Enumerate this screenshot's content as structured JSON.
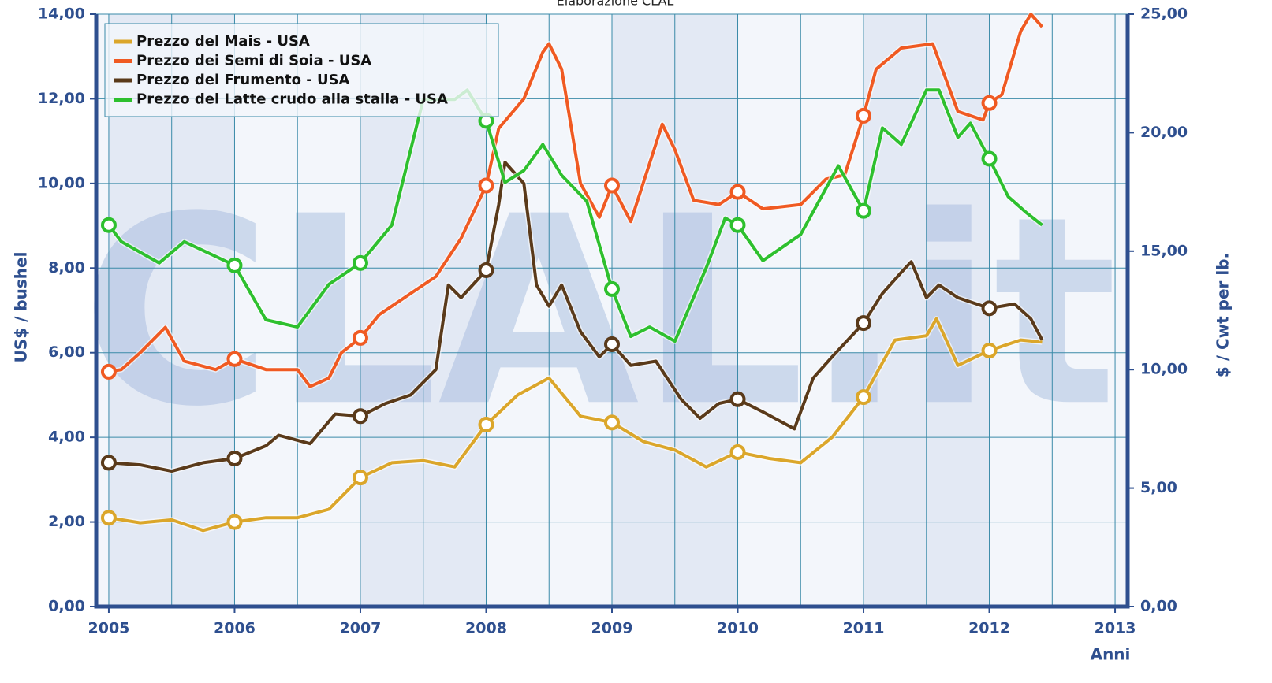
{
  "chart_data": {
    "type": "line",
    "title": "Elaborazione CLAL",
    "watermark": "CLAL.it",
    "xlabel": "Anni",
    "ylabel": "US$ / bushel",
    "y2label": "$ / Cwt per lb.",
    "legend": "upper left",
    "grid": true,
    "xlim": [
      2004.9,
      2013.1
    ],
    "xticks": [
      2005,
      2006,
      2007,
      2008,
      2009,
      2010,
      2011,
      2012,
      2013
    ],
    "ylim": [
      0,
      14
    ],
    "yticks": [
      {
        "value": 0,
        "label": "0,00"
      },
      {
        "value": 2,
        "label": "2,00"
      },
      {
        "value": 4,
        "label": "4,00"
      },
      {
        "value": 6,
        "label": "6,00"
      },
      {
        "value": 8,
        "label": "8,00"
      },
      {
        "value": 10,
        "label": "10,00"
      },
      {
        "value": 12,
        "label": "12,00"
      },
      {
        "value": 14,
        "label": "14,00"
      }
    ],
    "y2lim": [
      0,
      25
    ],
    "y2ticks": [
      {
        "value": 0,
        "label": "0,00"
      },
      {
        "value": 5,
        "label": "5,00"
      },
      {
        "value": 10,
        "label": "10,00"
      },
      {
        "value": 15,
        "label": "15,00"
      },
      {
        "value": 20,
        "label": "20,00"
      },
      {
        "value": 25,
        "label": "25,00"
      }
    ],
    "series": [
      {
        "name": "Prezzo del Mais - USA",
        "color": "#dba62a",
        "x": [
          2005,
          2005.25,
          2005.5,
          2005.75,
          2006,
          2006.25,
          2006.5,
          2006.75,
          2007,
          2007.25,
          2007.5,
          2007.75,
          2008,
          2008.25,
          2008.5,
          2008.75,
          2009,
          2009.25,
          2009.5,
          2009.75,
          2010,
          2010.25,
          2010.5,
          2010.75,
          2011,
          2011.25,
          2011.5,
          2011.58,
          2011.75,
          2012,
          2012.25,
          2012.42
        ],
        "values": [
          2.1,
          1.98,
          2.05,
          1.8,
          2.0,
          2.1,
          2.1,
          2.3,
          3.05,
          3.4,
          3.45,
          3.3,
          4.3,
          5.0,
          5.4,
          4.5,
          4.35,
          3.9,
          3.7,
          3.3,
          3.65,
          3.5,
          3.4,
          4.0,
          4.95,
          6.3,
          6.4,
          6.8,
          5.7,
          6.05,
          6.3,
          6.25
        ]
      },
      {
        "name": "Prezzo dei Semi di Soia - USA",
        "color": "#f05a22",
        "x": [
          2005,
          2005.1,
          2005.25,
          2005.45,
          2005.6,
          2005.85,
          2006,
          2006.25,
          2006.5,
          2006.6,
          2006.75,
          2006.85,
          2007,
          2007.15,
          2007.35,
          2007.6,
          2007.8,
          2008,
          2008.1,
          2008.3,
          2008.45,
          2008.5,
          2008.6,
          2008.75,
          2008.9,
          2009,
          2009.15,
          2009.4,
          2009.5,
          2009.65,
          2009.85,
          2010,
          2010.2,
          2010.5,
          2010.7,
          2010.85,
          2011,
          2011.1,
          2011.3,
          2011.55,
          2011.75,
          2011.95,
          2012,
          2012.1,
          2012.25,
          2012.33,
          2012.42
        ],
        "values": [
          5.55,
          5.6,
          6.0,
          6.6,
          5.8,
          5.6,
          5.85,
          5.6,
          5.6,
          5.2,
          5.4,
          6.0,
          6.35,
          6.9,
          7.3,
          7.8,
          8.7,
          9.95,
          11.3,
          12.0,
          13.1,
          13.3,
          12.7,
          10.0,
          9.2,
          9.95,
          9.1,
          11.4,
          10.8,
          9.6,
          9.5,
          9.8,
          9.4,
          9.5,
          10.1,
          10.2,
          11.6,
          12.7,
          13.2,
          13.3,
          11.7,
          11.5,
          11.9,
          12.1,
          13.6,
          14.0,
          13.7
        ]
      },
      {
        "name": "Prezzo del Frumento - USA",
        "color": "#5a3a1a",
        "x": [
          2005,
          2005.25,
          2005.5,
          2005.75,
          2006,
          2006.25,
          2006.35,
          2006.6,
          2006.8,
          2007,
          2007.2,
          2007.4,
          2007.6,
          2007.7,
          2007.8,
          2008,
          2008.1,
          2008.15,
          2008.3,
          2008.4,
          2008.5,
          2008.6,
          2008.75,
          2008.9,
          2009,
          2009.15,
          2009.35,
          2009.55,
          2009.7,
          2009.85,
          2010,
          2010.2,
          2010.45,
          2010.6,
          2010.75,
          2011,
          2011.15,
          2011.3,
          2011.38,
          2011.5,
          2011.6,
          2011.75,
          2012,
          2012.2,
          2012.33,
          2012.42
        ],
        "values": [
          3.4,
          3.35,
          3.2,
          3.4,
          3.5,
          3.8,
          4.05,
          3.85,
          4.55,
          4.5,
          4.8,
          5.0,
          5.6,
          7.6,
          7.3,
          7.95,
          9.5,
          10.5,
          10.0,
          7.6,
          7.1,
          7.6,
          6.5,
          5.9,
          6.2,
          5.7,
          5.8,
          4.9,
          4.45,
          4.8,
          4.9,
          4.6,
          4.2,
          5.4,
          5.9,
          6.7,
          7.4,
          7.9,
          8.15,
          7.3,
          7.6,
          7.3,
          7.05,
          7.15,
          6.8,
          6.3
        ]
      },
      {
        "name": "Prezzo del Latte crudo alla stalla - USA",
        "color": "#2ec02e",
        "axis": "y2",
        "x": [
          2005,
          2005.1,
          2005.4,
          2005.6,
          2006,
          2006.25,
          2006.5,
          2006.75,
          2007,
          2007.25,
          2007.5,
          2007.75,
          2007.85,
          2008,
          2008.15,
          2008.3,
          2008.45,
          2008.6,
          2008.8,
          2009,
          2009.15,
          2009.3,
          2009.5,
          2009.75,
          2009.9,
          2010,
          2010.2,
          2010.5,
          2010.8,
          2011,
          2011.15,
          2011.3,
          2011.5,
          2011.6,
          2011.75,
          2011.85,
          2012,
          2012.15,
          2012.3,
          2012.42
        ],
        "values": [
          16.1,
          15.4,
          14.5,
          15.4,
          14.4,
          12.1,
          11.8,
          13.6,
          14.5,
          16.1,
          21.4,
          21.4,
          21.8,
          20.5,
          17.9,
          18.4,
          19.5,
          18.2,
          17.1,
          13.4,
          11.4,
          11.8,
          11.2,
          14.3,
          16.4,
          16.1,
          14.6,
          15.7,
          18.6,
          16.7,
          20.2,
          19.5,
          21.8,
          21.8,
          19.8,
          20.4,
          18.9,
          17.3,
          16.6,
          16.1
        ]
      }
    ]
  }
}
